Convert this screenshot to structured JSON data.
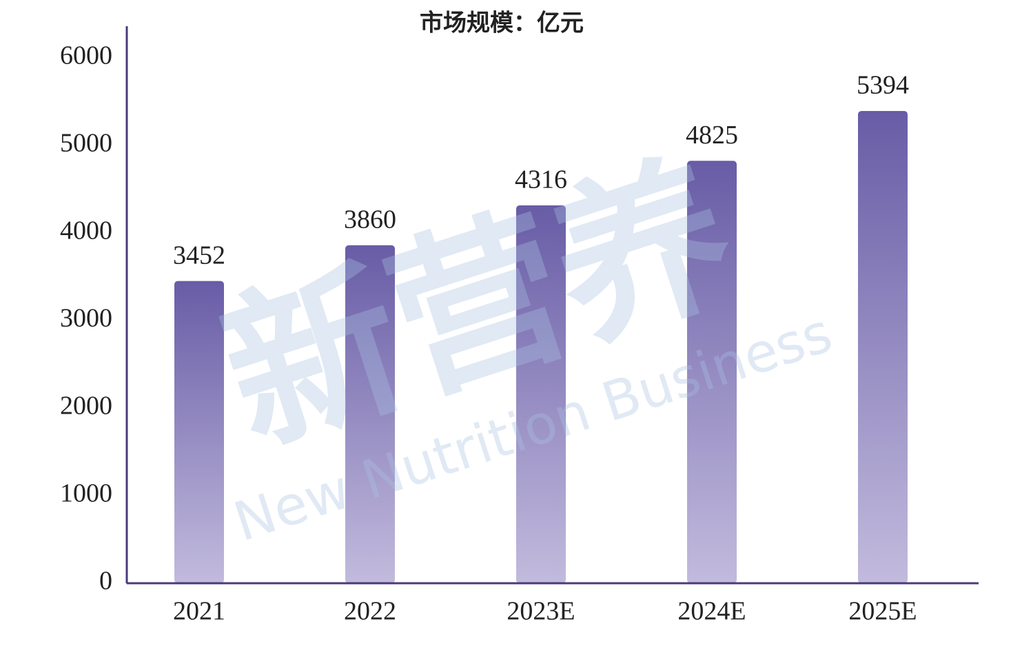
{
  "chart_data": {
    "type": "bar",
    "title": "市场规模：亿元",
    "categories": [
      "2021",
      "2022",
      "2023E",
      "2024E",
      "2025E"
    ],
    "values": [
      3452,
      3860,
      4316,
      4825,
      5394
    ],
    "color": "#6a5fa8",
    "ylim": [
      0,
      6000
    ],
    "yticks": [
      0,
      1000,
      2000,
      3000,
      4000,
      5000,
      6000
    ],
    "watermark": "新营养",
    "watermark_subtitle": "New Nutrition Business"
  }
}
